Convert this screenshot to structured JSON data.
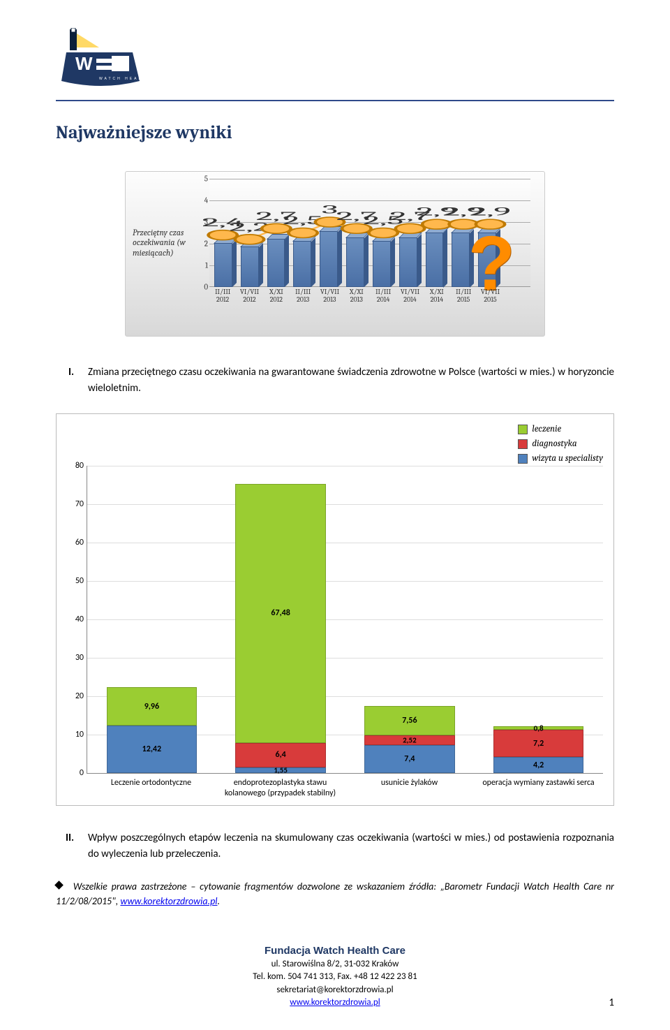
{
  "header": {
    "logo_alt": "Watch Health Care logo"
  },
  "heading": "Najważniejsze wyniki",
  "chart1": {
    "type": "bar+line 3d",
    "ylabel": "Przeciętny czas oczekiwania (w miesiącach)",
    "ylim": [
      0,
      5
    ],
    "ytick_step": 1,
    "background_gradient": [
      "#fdfdfd",
      "#d8d8d8"
    ],
    "bar_color": "#5a7fb5",
    "line_color": "#ffb84d",
    "categories": [
      "II/III 2012",
      "VI/VII 2012",
      "X/XI 2012",
      "II/III 2013",
      "VI/VII 2013",
      "X/XI 2013",
      "II/III 2014",
      "VI/VII 2014",
      "X/XI 2014",
      "II/III 2015",
      "VI/VII 2015"
    ],
    "bar_values": [
      2.0,
      1.85,
      2.2,
      2.1,
      2.55,
      2.25,
      2.1,
      2.25,
      2.5,
      2.5,
      2.5
    ],
    "line_values": [
      2.4,
      2.2,
      2.7,
      2.5,
      3.0,
      2.7,
      2.5,
      2.7,
      2.9,
      2.9,
      2.9
    ],
    "line_labels": [
      "2,4",
      "2,2",
      "2,7",
      "2,5",
      "3",
      "2,7",
      "2,5",
      "2,7",
      "2,9",
      "2,9",
      "2,9"
    ],
    "question_mark": "?"
  },
  "item1": {
    "num": "I.",
    "text_a": "Zmiana przeciętnego czasu oczekiwania na gwarantowane świadczenia zdrowotne w Polsce (wartości w mies.) w horyzoncie wieloletnim.",
    "text_b": ""
  },
  "chart2": {
    "type": "stacked-bar",
    "ylim": [
      0,
      80
    ],
    "ytick_step": 10,
    "colors": {
      "leczenie": "#9acd32",
      "diagnostyka": "#d83b3b",
      "wizyta": "#4f81bd"
    },
    "legend": [
      {
        "key": "leczenie",
        "label": "leczenie"
      },
      {
        "key": "diagnostyka",
        "label": "diagnostyka"
      },
      {
        "key": "wizyta",
        "label": "wizyta u specialisty"
      }
    ],
    "categories": [
      "Leczenie ortodontyczne",
      "endoprotezoplastyka stawu kolanowego (przypadek stabilny)",
      "usunicie żylaków",
      "operacja wymiany zastawki serca"
    ],
    "series": [
      {
        "wizyta": 12.42,
        "diagnostyka": 0,
        "leczenie": 9.96,
        "labels": {
          "wizyta": "12,42",
          "leczenie": "9,96"
        }
      },
      {
        "wizyta": 1.55,
        "diagnostyka": 6.4,
        "leczenie": 67.48,
        "labels": {
          "wizyta": "1,55",
          "diagnostyka": "6,4",
          "leczenie": "67,48"
        }
      },
      {
        "wizyta": 7.4,
        "diagnostyka": 2.52,
        "leczenie": 7.56,
        "labels": {
          "wizyta": "7,4",
          "diagnostyka": "2,52",
          "leczenie": "7,56"
        }
      },
      {
        "wizyta": 4.2,
        "diagnostyka": 7.2,
        "leczenie": 0.8,
        "labels": {
          "wizyta": "4,2",
          "diagnostyka": "7,2",
          "leczenie": "0,8"
        }
      }
    ]
  },
  "item2": {
    "num": "II.",
    "text": "Wpływ poszczególnych etapów leczenia na skumulowany czas oczekiwania (wartości w mies.) od postawienia rozpoznania do wyleczenia lub przeleczenia."
  },
  "note": {
    "prefix": "Wszelkie prawa zastrzeżone – cytowanie fragmentów dozwolone ze wskazaniem źródła: „Barometr Fundacji Watch Health Care nr 11/2/08/2015\", ",
    "link": "www.korektorzdrowia.pl",
    "suffix": "."
  },
  "footer": {
    "name": "Fundacja Watch Health Care",
    "addr": "ul. Starowiślna 8/2, 31-032 Kraków",
    "tel": "Tel. kom. 504 741 313, Fax. +48 12 422 23 81",
    "email": "sekretariat@korektorzdrowia.pl",
    "site": "www.korektorzdrowia.pl"
  },
  "page_number": "1"
}
